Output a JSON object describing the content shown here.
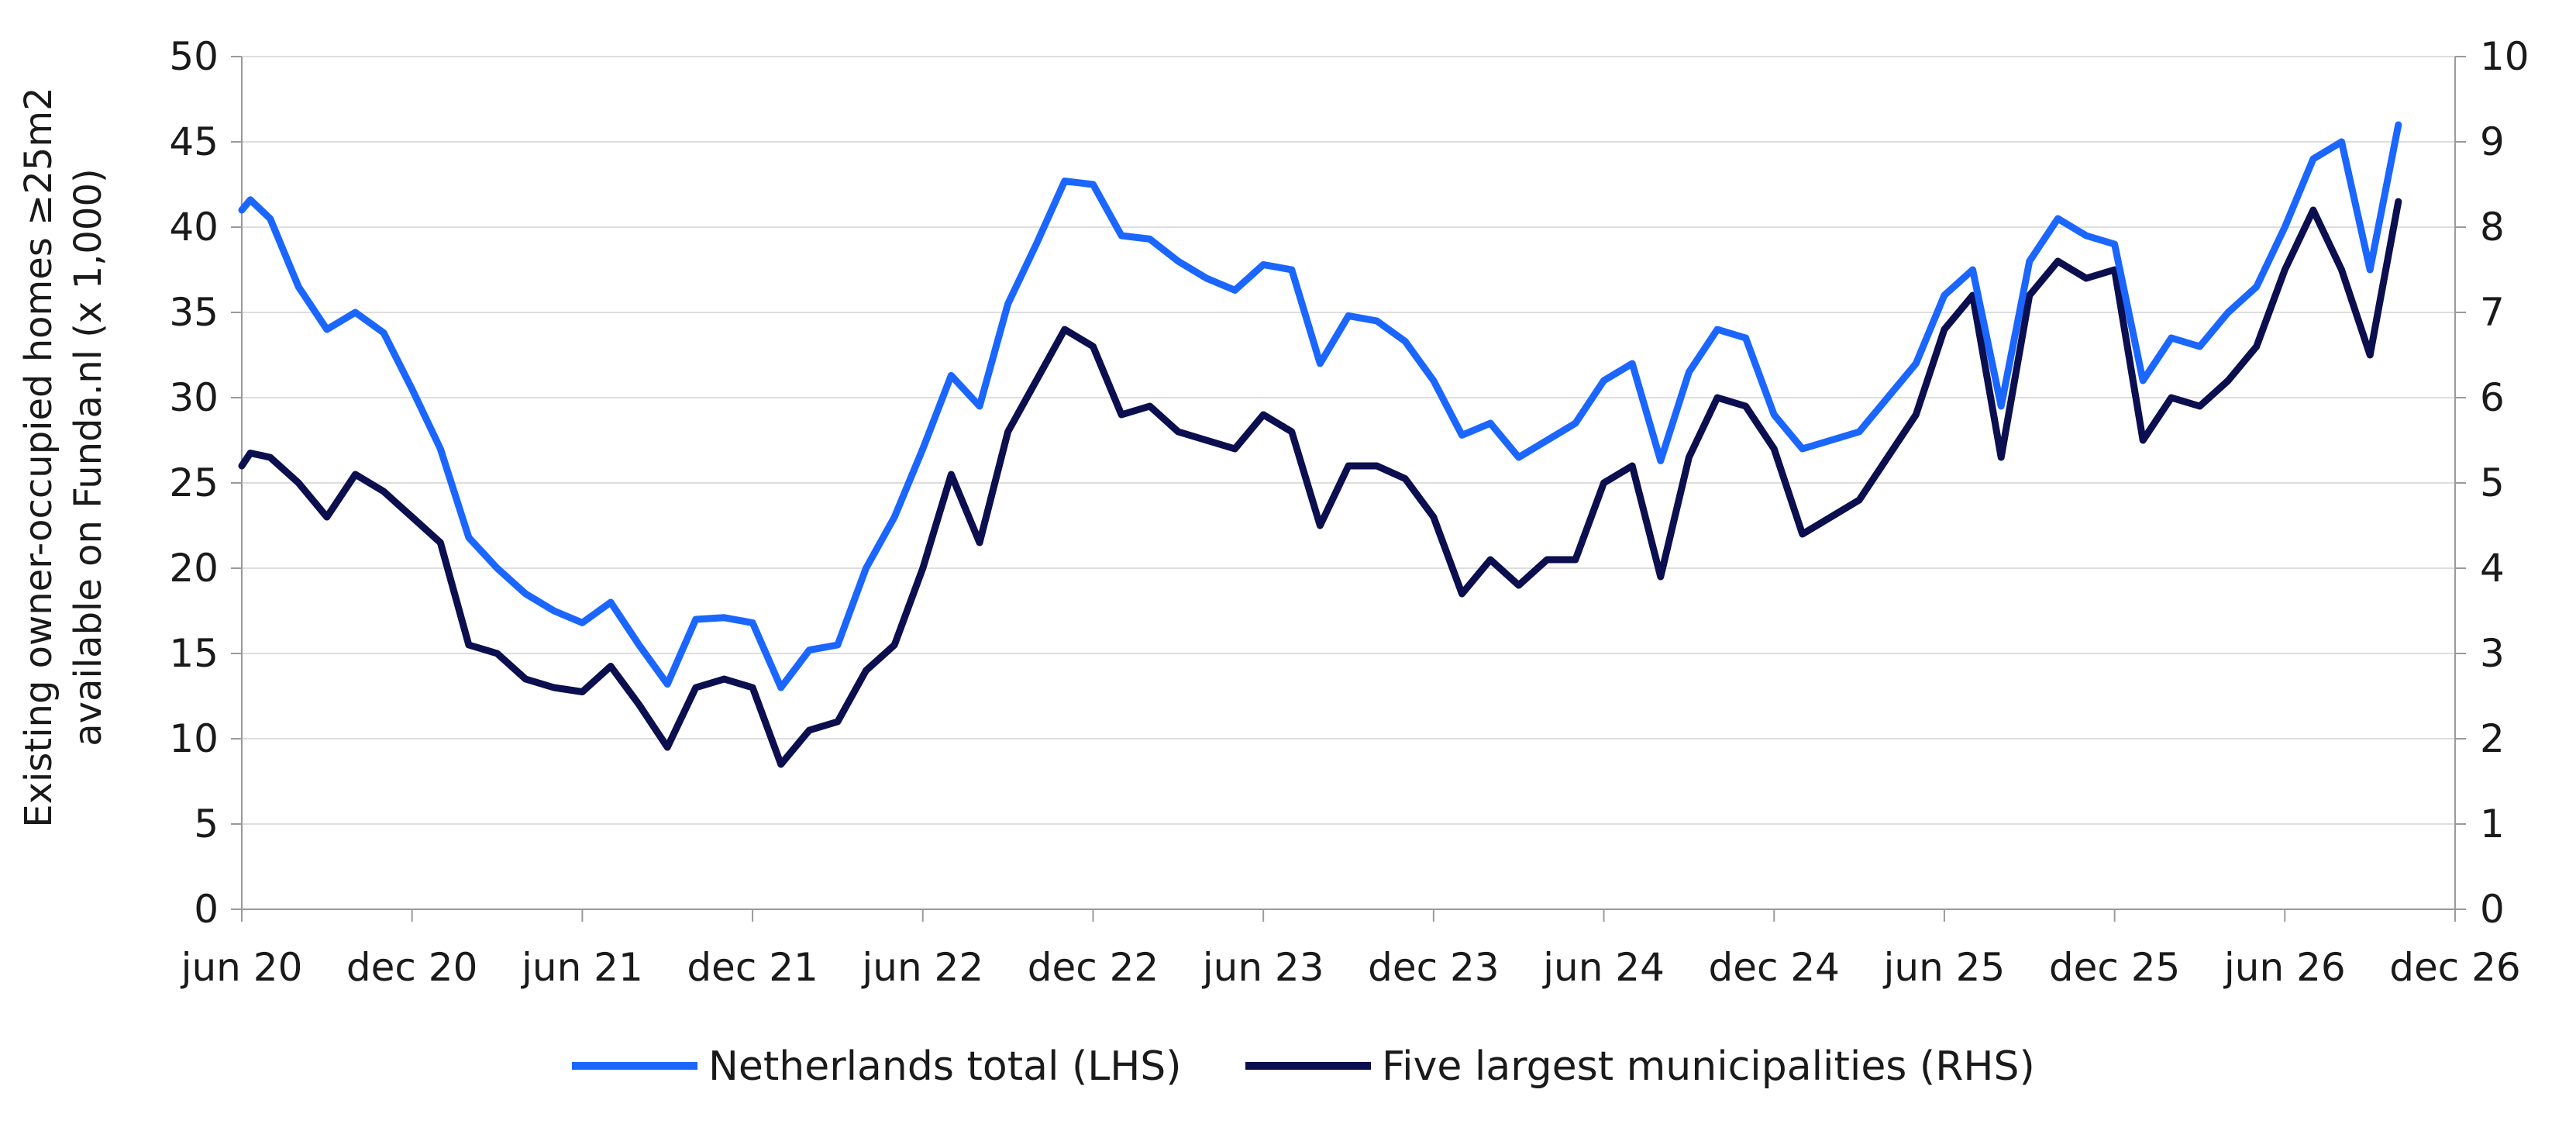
{
  "chart_data": {
    "type": "line",
    "title": "",
    "xlabel": "",
    "ylabel_left": [
      "Existing owner-occupied homes ≥25m2",
      "available on Funda.nl (x 1,000)"
    ],
    "ylabel_right": "",
    "x_tick_labels": [
      "jun 20",
      "dec 20",
      "jun 21",
      "dec 21",
      "jun 22",
      "dec 22",
      "jun 23",
      "dec 23",
      "jun 24",
      "dec 24",
      "jun 25",
      "dec 25",
      "jun 26",
      "dec 26"
    ],
    "x_range_months": [
      "2020-06",
      "2026-12"
    ],
    "ylim_left": [
      0,
      50
    ],
    "yticks_left": [
      0,
      5,
      10,
      15,
      20,
      25,
      30,
      35,
      40,
      45,
      50
    ],
    "ylim_right": [
      0,
      10
    ],
    "yticks_right": [
      0,
      1,
      2,
      3,
      4,
      5,
      6,
      7,
      8,
      9,
      10
    ],
    "grid": "horizontal",
    "legend_position": "bottom",
    "series": [
      {
        "name": "Netherlands total (LHS)",
        "axis": "left",
        "color": "#1a66ff",
        "points": [
          [
            "2020-06",
            41
          ],
          [
            "2020-06-10",
            41.6
          ],
          [
            "2020-07",
            40.5
          ],
          [
            "2020-08",
            36.5
          ],
          [
            "2020-09",
            34
          ],
          [
            "2020-10",
            35
          ],
          [
            "2020-11",
            33.8
          ],
          [
            "2020-12",
            30.5
          ],
          [
            "2021-01",
            27
          ],
          [
            "2021-02",
            21.8
          ],
          [
            "2021-03",
            20
          ],
          [
            "2021-04",
            18.5
          ],
          [
            "2021-05",
            17.5
          ],
          [
            "2021-06",
            16.8
          ],
          [
            "2021-07",
            18
          ],
          [
            "2021-08",
            15.5
          ],
          [
            "2021-09",
            13.2
          ],
          [
            "2021-10",
            17
          ],
          [
            "2021-11",
            17.1
          ],
          [
            "2021-12",
            16.8
          ],
          [
            "2022-01",
            13
          ],
          [
            "2022-02",
            15.2
          ],
          [
            "2022-03",
            15.5
          ],
          [
            "2022-04",
            20
          ],
          [
            "2022-05",
            23
          ],
          [
            "2022-06",
            27
          ],
          [
            "2022-07",
            31.3
          ],
          [
            "2022-08",
            29.5
          ],
          [
            "2022-09",
            35.5
          ],
          [
            "2022-10",
            39
          ],
          [
            "2022-11",
            42.7
          ],
          [
            "2022-12",
            42.5
          ],
          [
            "2023-01",
            39.5
          ],
          [
            "2023-02",
            39.3
          ],
          [
            "2023-03",
            38
          ],
          [
            "2023-04",
            37
          ],
          [
            "2023-05",
            36.3
          ],
          [
            "2023-06",
            37.8
          ],
          [
            "2023-07",
            37.5
          ],
          [
            "2023-08",
            32
          ],
          [
            "2023-09",
            34.8
          ],
          [
            "2023-10",
            34.5
          ],
          [
            "2023-11",
            33.3
          ],
          [
            "2023-12",
            31
          ],
          [
            "2024-01",
            27.8
          ],
          [
            "2024-02",
            28.5
          ],
          [
            "2024-03",
            26.5
          ],
          [
            "2024-04",
            27.5
          ],
          [
            "2024-05",
            28.5
          ],
          [
            "2024-06",
            31
          ],
          [
            "2024-07",
            32
          ],
          [
            "2024-08",
            26.3
          ],
          [
            "2024-09",
            31.5
          ],
          [
            "2024-10",
            34
          ],
          [
            "2024-11",
            33.5
          ],
          [
            "2024-12",
            29
          ],
          [
            "2025-01",
            27
          ],
          [
            "2025-02",
            27.5
          ],
          [
            "2025-03",
            28
          ],
          [
            "2025-04",
            30
          ],
          [
            "2025-05",
            32
          ],
          [
            "2025-06",
            36
          ],
          [
            "2025-07",
            37.5
          ],
          [
            "2025-08",
            29.5
          ],
          [
            "2025-09",
            38
          ],
          [
            "2025-10",
            40.5
          ],
          [
            "2025-11",
            39.5
          ],
          [
            "2025-12",
            39
          ],
          [
            "2026-01",
            31
          ],
          [
            "2026-02",
            33.5
          ],
          [
            "2026-03",
            33
          ],
          [
            "2026-04",
            35
          ],
          [
            "2026-05",
            36.5
          ],
          [
            "2026-06",
            40
          ],
          [
            "2026-07",
            44
          ],
          [
            "2026-08",
            45
          ],
          [
            "2026-09",
            37.5
          ],
          [
            "2026-10",
            46
          ]
        ]
      },
      {
        "name": "Five largest municipalities (RHS)",
        "axis": "right",
        "color": "#0b0e4f",
        "points": [
          [
            "2020-06",
            5.2
          ],
          [
            "2020-06-10",
            5.35
          ],
          [
            "2020-07",
            5.3
          ],
          [
            "2020-08",
            5.0
          ],
          [
            "2020-09",
            4.6
          ],
          [
            "2020-10",
            5.1
          ],
          [
            "2020-11",
            4.9
          ],
          [
            "2020-12",
            4.6
          ],
          [
            "2021-01",
            4.3
          ],
          [
            "2021-02",
            3.1
          ],
          [
            "2021-03",
            3.0
          ],
          [
            "2021-04",
            2.7
          ],
          [
            "2021-05",
            2.6
          ],
          [
            "2021-06",
            2.55
          ],
          [
            "2021-07",
            2.85
          ],
          [
            "2021-08",
            2.4
          ],
          [
            "2021-09",
            1.9
          ],
          [
            "2021-10",
            2.6
          ],
          [
            "2021-11",
            2.7
          ],
          [
            "2021-12",
            2.6
          ],
          [
            "2022-01",
            1.7
          ],
          [
            "2022-02",
            2.1
          ],
          [
            "2022-03",
            2.2
          ],
          [
            "2022-04",
            2.8
          ],
          [
            "2022-05",
            3.1
          ],
          [
            "2022-06",
            4.0
          ],
          [
            "2022-07",
            5.1
          ],
          [
            "2022-08",
            4.3
          ],
          [
            "2022-09",
            5.6
          ],
          [
            "2022-10",
            6.2
          ],
          [
            "2022-11",
            6.8
          ],
          [
            "2022-12",
            6.6
          ],
          [
            "2023-01",
            5.8
          ],
          [
            "2023-02",
            5.9
          ],
          [
            "2023-03",
            5.6
          ],
          [
            "2023-04",
            5.5
          ],
          [
            "2023-05",
            5.4
          ],
          [
            "2023-06",
            5.8
          ],
          [
            "2023-07",
            5.6
          ],
          [
            "2023-08",
            4.5
          ],
          [
            "2023-09",
            5.2
          ],
          [
            "2023-10",
            5.2
          ],
          [
            "2023-11",
            5.05
          ],
          [
            "2023-12",
            4.6
          ],
          [
            "2024-01",
            3.7
          ],
          [
            "2024-02",
            4.1
          ],
          [
            "2024-03",
            3.8
          ],
          [
            "2024-04",
            4.1
          ],
          [
            "2024-05",
            4.1
          ],
          [
            "2024-06",
            5.0
          ],
          [
            "2024-07",
            5.2
          ],
          [
            "2024-08",
            3.9
          ],
          [
            "2024-09",
            5.3
          ],
          [
            "2024-10",
            6.0
          ],
          [
            "2024-11",
            5.9
          ],
          [
            "2024-12",
            5.4
          ],
          [
            "2025-01",
            4.4
          ],
          [
            "2025-02",
            4.6
          ],
          [
            "2025-03",
            4.8
          ],
          [
            "2025-04",
            5.3
          ],
          [
            "2025-05",
            5.8
          ],
          [
            "2025-06",
            6.8
          ],
          [
            "2025-07",
            7.2
          ],
          [
            "2025-08",
            5.3
          ],
          [
            "2025-09",
            7.2
          ],
          [
            "2025-10",
            7.6
          ],
          [
            "2025-11",
            7.4
          ],
          [
            "2025-12",
            7.5
          ],
          [
            "2026-01",
            5.5
          ],
          [
            "2026-02",
            6.0
          ],
          [
            "2026-03",
            5.9
          ],
          [
            "2026-04",
            6.2
          ],
          [
            "2026-05",
            6.6
          ],
          [
            "2026-06",
            7.5
          ],
          [
            "2026-07",
            8.2
          ],
          [
            "2026-08",
            7.5
          ],
          [
            "2026-09",
            6.5
          ],
          [
            "2026-10",
            8.3
          ]
        ]
      }
    ]
  }
}
